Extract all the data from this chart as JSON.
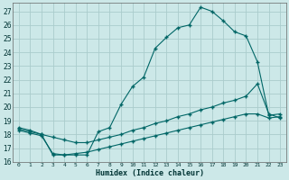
{
  "xlabel": "Humidex (Indice chaleur)",
  "bg_color": "#cce8e8",
  "grid_color": "#aacccc",
  "line_color": "#006666",
  "xlim": [
    -0.5,
    23.5
  ],
  "ylim": [
    16,
    27.6
  ],
  "yticks": [
    16,
    17,
    18,
    19,
    20,
    21,
    22,
    23,
    24,
    25,
    26,
    27
  ],
  "xticks": [
    0,
    1,
    2,
    3,
    4,
    5,
    6,
    7,
    8,
    9,
    10,
    11,
    12,
    13,
    14,
    15,
    16,
    17,
    18,
    19,
    20,
    21,
    22,
    23
  ],
  "series": [
    {
      "x": [
        0,
        1,
        2,
        3,
        4,
        5,
        6,
        7,
        8,
        9,
        10,
        11,
        12,
        13,
        14,
        15,
        16,
        17,
        18,
        19,
        20,
        21,
        22,
        23
      ],
      "y": [
        18.5,
        18.3,
        18.0,
        16.5,
        16.5,
        16.5,
        16.5,
        18.2,
        18.5,
        20.2,
        21.5,
        22.2,
        24.3,
        25.1,
        25.8,
        26.0,
        27.3,
        27.0,
        26.3,
        25.5,
        25.2,
        23.3,
        19.4,
        19.5
      ]
    },
    {
      "x": [
        0,
        1,
        2,
        3,
        4,
        5,
        6,
        7,
        8,
        9,
        10,
        11,
        12,
        13,
        14,
        15,
        16,
        17,
        18,
        19,
        20,
        21,
        22,
        23
      ],
      "y": [
        18.4,
        18.2,
        18.0,
        17.8,
        17.6,
        17.4,
        17.4,
        17.6,
        17.8,
        18.0,
        18.3,
        18.5,
        18.8,
        19.0,
        19.3,
        19.5,
        19.8,
        20.0,
        20.3,
        20.5,
        20.8,
        21.7,
        19.5,
        19.2
      ]
    },
    {
      "x": [
        0,
        1,
        2,
        3,
        4,
        5,
        6,
        7,
        8,
        9,
        10,
        11,
        12,
        13,
        14,
        15,
        16,
        17,
        18,
        19,
        20,
        21,
        22,
        23
      ],
      "y": [
        18.3,
        18.1,
        17.9,
        16.6,
        16.5,
        16.6,
        16.7,
        16.9,
        17.1,
        17.3,
        17.5,
        17.7,
        17.9,
        18.1,
        18.3,
        18.5,
        18.7,
        18.9,
        19.1,
        19.3,
        19.5,
        19.5,
        19.2,
        19.3
      ]
    }
  ]
}
